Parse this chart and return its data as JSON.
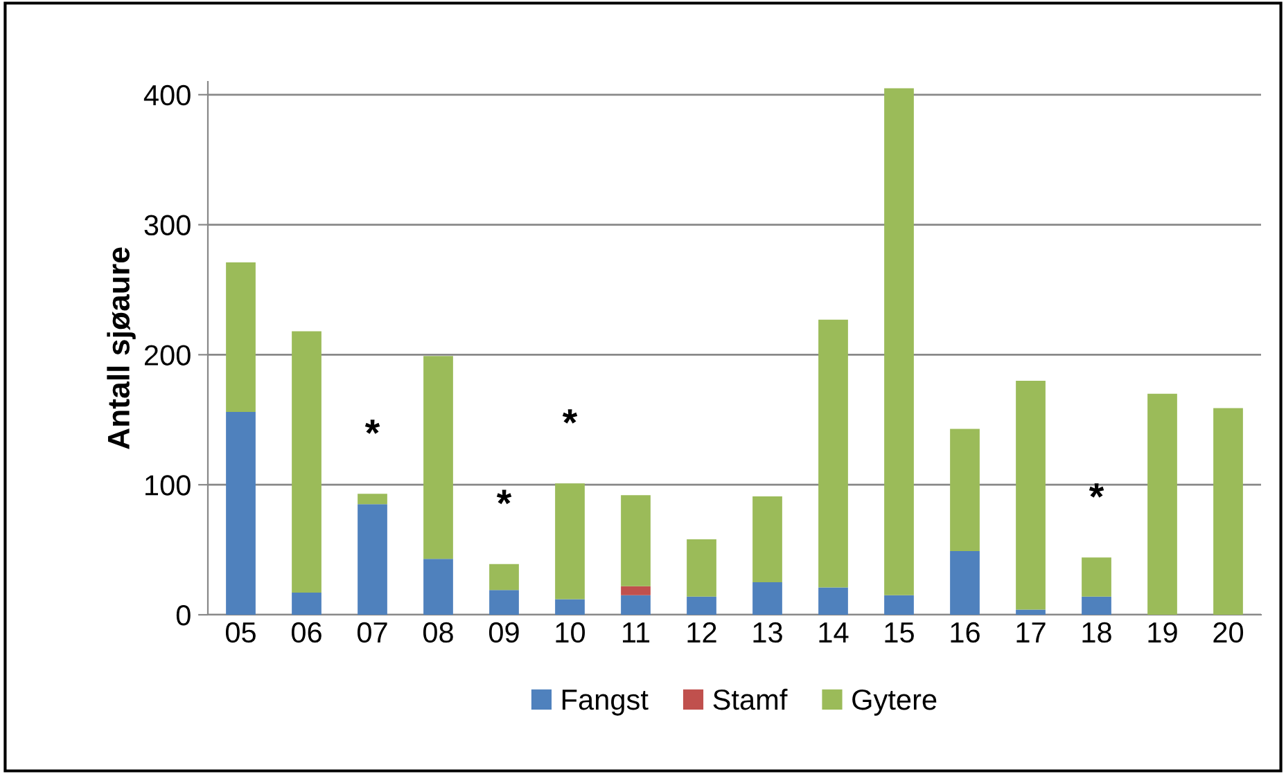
{
  "chart_data": {
    "type": "bar",
    "stacked": true,
    "ylabel": "Antall sjøaure",
    "categories": [
      "05",
      "06",
      "07",
      "08",
      "09",
      "10",
      "11",
      "12",
      "13",
      "14",
      "15",
      "16",
      "17",
      "18",
      "19",
      "20"
    ],
    "series": [
      {
        "name": "Fangst",
        "color": "#4f81bd",
        "values": [
          156,
          17,
          85,
          43,
          19,
          12,
          15,
          14,
          25,
          21,
          15,
          49,
          4,
          14,
          0,
          0
        ]
      },
      {
        "name": "Stamf",
        "color": "#c0504d",
        "values": [
          0,
          0,
          0,
          0,
          0,
          0,
          7,
          0,
          0,
          0,
          0,
          0,
          0,
          0,
          0,
          0
        ]
      },
      {
        "name": "Gytere",
        "color": "#9bbb59",
        "values": [
          115,
          201,
          8,
          156,
          20,
          89,
          70,
          44,
          66,
          206,
          390,
          94,
          176,
          30,
          170,
          159
        ]
      }
    ],
    "ylim": [
      0,
      410
    ],
    "yticks": [
      0,
      100,
      200,
      300,
      400
    ],
    "grid": "y",
    "legend": "bottom",
    "annotations": [
      {
        "text": "*",
        "x": "07",
        "y": 93
      },
      {
        "text": "*",
        "x": "09",
        "y": 39
      },
      {
        "text": "*",
        "x": "10",
        "y": 101
      },
      {
        "text": "*",
        "x": "18",
        "y": 44
      }
    ]
  }
}
